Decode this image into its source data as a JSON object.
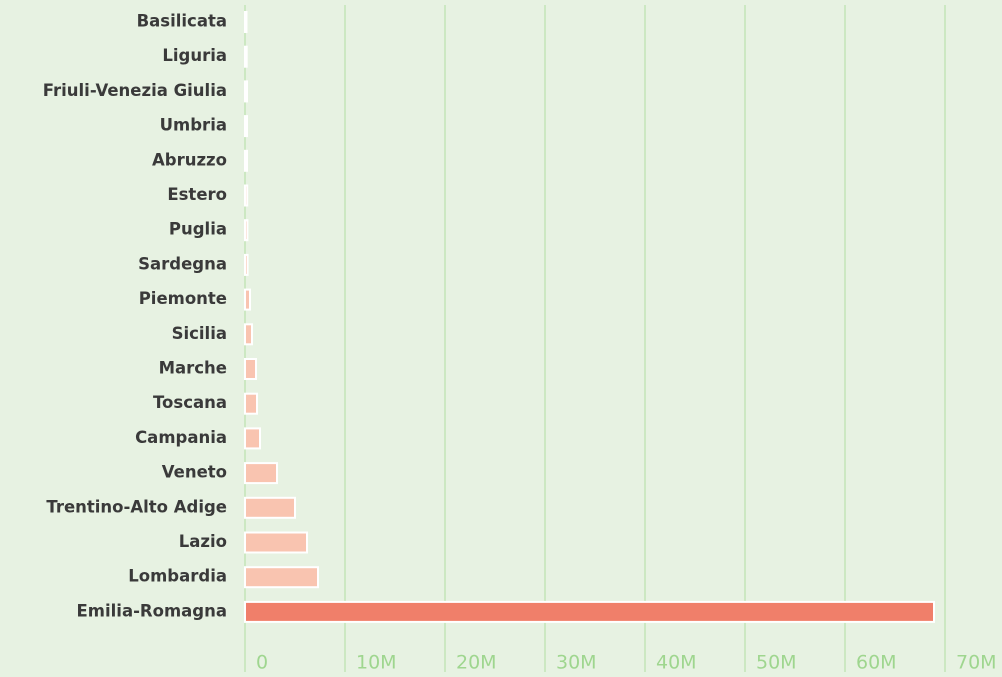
{
  "chart_data": {
    "type": "hbar",
    "categories": [
      "Basilicata",
      "Liguria",
      "Friuli-Venezia Giulia",
      "Umbria",
      "Abruzzo",
      "Estero",
      "Puglia",
      "Sardegna",
      "Piemonte",
      "Sicilia",
      "Marche",
      "Toscana",
      "Campania",
      "Veneto",
      "Trentino-Alto Adige",
      "Lazio",
      "Lombardia",
      "Emilia-Romagna"
    ],
    "values": [
      150000,
      170000,
      200000,
      200000,
      200000,
      220000,
      240000,
      260000,
      500000,
      700000,
      1100000,
      1200000,
      1500000,
      3200000,
      5000000,
      6200000,
      7300000,
      68900000
    ],
    "colors": [
      "#f9c4b0",
      "#f9c4b0",
      "#f9c4b0",
      "#f9c4b0",
      "#f9c4b0",
      "#f9c4b0",
      "#f9c4b0",
      "#f9c4b0",
      "#f9c4b0",
      "#f9c4b0",
      "#f9c4b0",
      "#f9c4b0",
      "#f9c4b0",
      "#f9c4b0",
      "#f9c4b0",
      "#f9c4b0",
      "#f9c4b0",
      "#f07f6a"
    ],
    "xlim": [
      0,
      75700000
    ],
    "xticks": [
      0,
      {
        "value": 10000000,
        "label": "10M"
      },
      {
        "value": 20000000,
        "label": "20M"
      },
      {
        "value": 30000000,
        "label": "30M"
      },
      {
        "value": 40000000,
        "label": "40M"
      },
      {
        "value": 50000000,
        "label": "50M"
      },
      {
        "value": 60000000,
        "label": "60M"
      },
      {
        "value": 70000000,
        "label": "70M"
      }
    ],
    "grid": true
  }
}
